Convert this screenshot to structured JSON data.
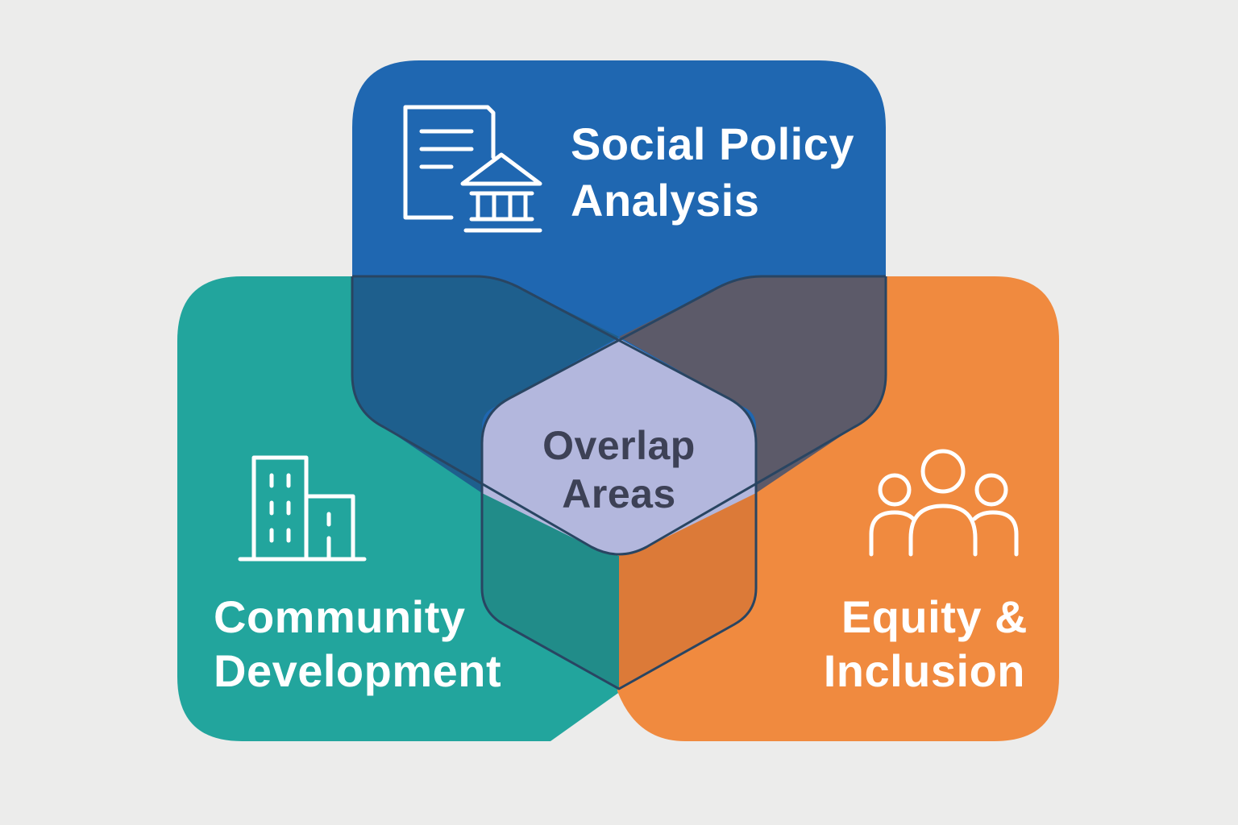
{
  "diagram": {
    "colors": {
      "background": "#ececeb",
      "social_policy": "#1f67b1",
      "community": "#22a59d",
      "equity": "#f08a3f",
      "overlap_policy_community": "#1e5f8d",
      "overlap_policy_equity": "#5c5a69",
      "overlap_community_equity_left": "#218c89",
      "overlap_community_equity_right": "#dc7a38",
      "center": "#b3b7dd",
      "outline": "#294562",
      "label_light": "#ffffff",
      "label_dark": "#3d4156"
    },
    "regions": {
      "social_policy": {
        "line1": "Social Policy",
        "line2": "Analysis",
        "icon": "document-government-building-icon"
      },
      "community": {
        "line1": "Community",
        "line2": "Development",
        "icon": "buildings-icon"
      },
      "equity": {
        "line1": "Equity &",
        "line2": "Inclusion",
        "icon": "people-group-icon"
      }
    },
    "center": {
      "line1": "Overlap",
      "line2": "Areas"
    }
  }
}
